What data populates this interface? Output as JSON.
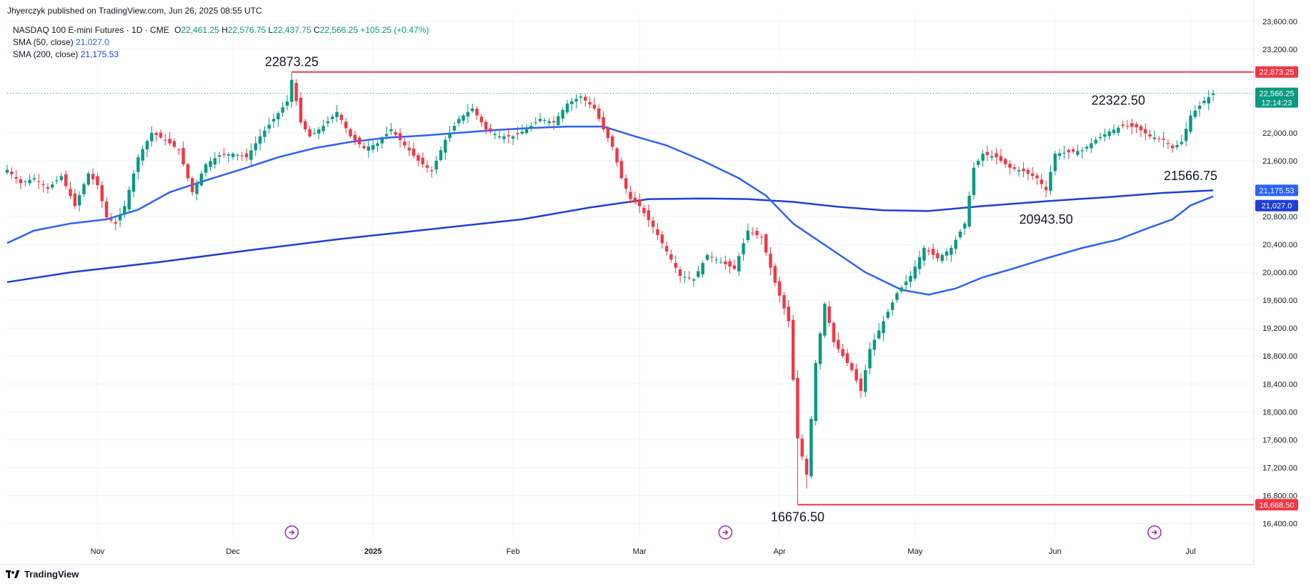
{
  "publisher_line": "Jhyerczyk published on TradingView.com, Jun 26, 2025 08:55 UTC",
  "legend": {
    "symbol": "NASDAQ 100 E-mini Futures · 1D · CME",
    "o_label": "O",
    "o_value": "22,461.25",
    "h_label": "H",
    "h_value": "22,576.75",
    "l_label": "L",
    "l_value": "22,437.75",
    "c_label": "C",
    "c_value": "22,566.25",
    "change": "+105.25 (+0.47%)",
    "sma50_label": "SMA (50, close)",
    "sma50_value": "21,027.0",
    "sma200_label": "SMA (200, close)",
    "sma200_value": "21,175.53"
  },
  "footer_brand": "TradingView",
  "colors": {
    "up": "#089981",
    "down": "#f23645",
    "sma50": "#2962ff",
    "sma200": "#1e3fd6",
    "resistance": "#f23645",
    "grid": "#f0f3fa",
    "text": "#131722"
  },
  "chart_data": {
    "type": "candlestick",
    "title": "NASDAQ 100 E-mini Futures · 1D · CME",
    "ylim": [
      16200,
      23700
    ],
    "y_ticks": [
      16400,
      16800,
      17200,
      17600,
      18000,
      18400,
      18800,
      19200,
      19600,
      20000,
      20400,
      20800,
      21600,
      22000,
      23200,
      23600
    ],
    "y_tick_labels": [
      "16,400.00",
      "16,800.00",
      "17,200.00",
      "17,600.00",
      "18,000.00",
      "18,400.00",
      "18,800.00",
      "19,200.00",
      "19,600.00",
      "20,000.00",
      "20,400.00",
      "20,800.00",
      "21,600.00",
      "22,000.00",
      "23,200.00",
      "23,600.00"
    ],
    "x_ticks": [
      {
        "label": "Nov",
        "day": 26
      },
      {
        "label": "Dec",
        "day": 56
      },
      {
        "label": "2025",
        "day": 87
      },
      {
        "label": "Feb",
        "day": 118
      },
      {
        "label": "Mar",
        "day": 146
      },
      {
        "label": "Apr",
        "day": 177
      },
      {
        "label": "May",
        "day": 207
      },
      {
        "label": "Jun",
        "day": 238
      },
      {
        "label": "Jul",
        "day": 268
      }
    ],
    "x_range_days": [
      6,
      282
    ],
    "horizontal_lines": [
      {
        "value": 22873.25,
        "label": "22,873.25",
        "color": "#f23645",
        "from_day": 69
      },
      {
        "value": 16668.5,
        "label": "16,668.50",
        "color": "#f23645",
        "from_day": 181
      }
    ],
    "current_price": {
      "value": 22566.25,
      "label": "22,566.25",
      "countdown": "12:14:23"
    },
    "sma_badges": [
      {
        "value": 21175.53,
        "label": "21,175.53",
        "color": "#2962ff"
      },
      {
        "value": 21027.0,
        "label": "21,027.0",
        "color": "#1e3fd6"
      }
    ],
    "annotations": [
      {
        "text": "22873.25",
        "day": 69,
        "value": 22873.25,
        "pos": "above"
      },
      {
        "text": "22322.50",
        "day": 252,
        "value": 22322.5,
        "pos": "above"
      },
      {
        "text": "21566.75",
        "day": 268,
        "value": 21566.75,
        "pos": "below"
      },
      {
        "text": "20943.50",
        "day": 236,
        "value": 20943.5,
        "pos": "below"
      },
      {
        "text": "16676.50",
        "day": 181,
        "value": 16676.5,
        "pos": "below"
      }
    ],
    "event_markers_days": [
      69,
      165,
      260
    ],
    "anchors": [
      [
        6,
        21470
      ],
      [
        9,
        21280
      ],
      [
        12,
        21350
      ],
      [
        15,
        21200
      ],
      [
        18,
        21380
      ],
      [
        21,
        20950
      ],
      [
        24,
        21420
      ],
      [
        26,
        21250
      ],
      [
        28,
        20790
      ],
      [
        30,
        20700
      ],
      [
        32,
        20950
      ],
      [
        35,
        21650
      ],
      [
        38,
        22000
      ],
      [
        41,
        21900
      ],
      [
        44,
        21750
      ],
      [
        47,
        21150
      ],
      [
        50,
        21550
      ],
      [
        53,
        21680
      ],
      [
        56,
        21700
      ],
      [
        59,
        21650
      ],
      [
        62,
        21950
      ],
      [
        65,
        22200
      ],
      [
        68,
        22450
      ],
      [
        69,
        22760
      ],
      [
        71,
        22150
      ],
      [
        73,
        21950
      ],
      [
        76,
        22100
      ],
      [
        79,
        22300
      ],
      [
        82,
        21950
      ],
      [
        85,
        21780
      ],
      [
        88,
        21850
      ],
      [
        91,
        22050
      ],
      [
        94,
        21820
      ],
      [
        97,
        21600
      ],
      [
        100,
        21450
      ],
      [
        103,
        21900
      ],
      [
        106,
        22200
      ],
      [
        109,
        22350
      ],
      [
        112,
        22050
      ],
      [
        115,
        21950
      ],
      [
        118,
        21950
      ],
      [
        121,
        22050
      ],
      [
        124,
        22200
      ],
      [
        127,
        22150
      ],
      [
        130,
        22420
      ],
      [
        133,
        22520
      ],
      [
        136,
        22350
      ],
      [
        138,
        22050
      ],
      [
        140,
        21800
      ],
      [
        142,
        21350
      ],
      [
        144,
        21050
      ],
      [
        146,
        20950
      ],
      [
        149,
        20650
      ],
      [
        152,
        20300
      ],
      [
        155,
        19950
      ],
      [
        158,
        19900
      ],
      [
        161,
        20250
      ],
      [
        164,
        20150
      ],
      [
        167,
        20050
      ],
      [
        170,
        20600
      ],
      [
        173,
        20500
      ],
      [
        176,
        19850
      ],
      [
        179,
        19300
      ],
      [
        181,
        17620
      ],
      [
        183,
        17100
      ],
      [
        185,
        18700
      ],
      [
        187,
        19550
      ],
      [
        189,
        19000
      ],
      [
        191,
        18800
      ],
      [
        193,
        18600
      ],
      [
        195,
        18300
      ],
      [
        197,
        18900
      ],
      [
        200,
        19300
      ],
      [
        203,
        19700
      ],
      [
        206,
        19950
      ],
      [
        209,
        20350
      ],
      [
        212,
        20200
      ],
      [
        215,
        20350
      ],
      [
        218,
        20700
      ],
      [
        220,
        21500
      ],
      [
        222,
        21700
      ],
      [
        225,
        21650
      ],
      [
        228,
        21500
      ],
      [
        231,
        21450
      ],
      [
        234,
        21350
      ],
      [
        236,
        21180
      ],
      [
        238,
        21700
      ],
      [
        241,
        21720
      ],
      [
        244,
        21750
      ],
      [
        247,
        21900
      ],
      [
        250,
        22020
      ],
      [
        253,
        22100
      ],
      [
        256,
        22080
      ],
      [
        259,
        21950
      ],
      [
        262,
        21900
      ],
      [
        264,
        21780
      ],
      [
        266,
        21870
      ],
      [
        268,
        22250
      ],
      [
        271,
        22460
      ],
      [
        273,
        22566
      ]
    ],
    "sma50": [
      [
        6,
        20420
      ],
      [
        12,
        20600
      ],
      [
        20,
        20700
      ],
      [
        28,
        20760
      ],
      [
        35,
        20900
      ],
      [
        42,
        21150
      ],
      [
        50,
        21320
      ],
      [
        58,
        21480
      ],
      [
        66,
        21650
      ],
      [
        74,
        21780
      ],
      [
        82,
        21870
      ],
      [
        90,
        21930
      ],
      [
        98,
        21960
      ],
      [
        106,
        22000
      ],
      [
        114,
        22040
      ],
      [
        122,
        22070
      ],
      [
        130,
        22090
      ],
      [
        138,
        22090
      ],
      [
        145,
        21950
      ],
      [
        152,
        21820
      ],
      [
        160,
        21600
      ],
      [
        168,
        21350
      ],
      [
        174,
        21100
      ],
      [
        180,
        20700
      ],
      [
        188,
        20350
      ],
      [
        196,
        20000
      ],
      [
        204,
        19750
      ],
      [
        210,
        19680
      ],
      [
        216,
        19770
      ],
      [
        222,
        19930
      ],
      [
        228,
        20040
      ],
      [
        236,
        20200
      ],
      [
        244,
        20350
      ],
      [
        252,
        20470
      ],
      [
        258,
        20620
      ],
      [
        264,
        20760
      ],
      [
        268,
        20960
      ],
      [
        273,
        21090
      ]
    ],
    "sma200": [
      [
        6,
        19860
      ],
      [
        20,
        20000
      ],
      [
        40,
        20150
      ],
      [
        60,
        20320
      ],
      [
        80,
        20480
      ],
      [
        100,
        20620
      ],
      [
        120,
        20760
      ],
      [
        135,
        20930
      ],
      [
        148,
        21050
      ],
      [
        160,
        21060
      ],
      [
        170,
        21050
      ],
      [
        180,
        21010
      ],
      [
        190,
        20940
      ],
      [
        200,
        20890
      ],
      [
        210,
        20880
      ],
      [
        222,
        20950
      ],
      [
        236,
        21020
      ],
      [
        250,
        21080
      ],
      [
        262,
        21140
      ],
      [
        273,
        21175
      ]
    ]
  }
}
